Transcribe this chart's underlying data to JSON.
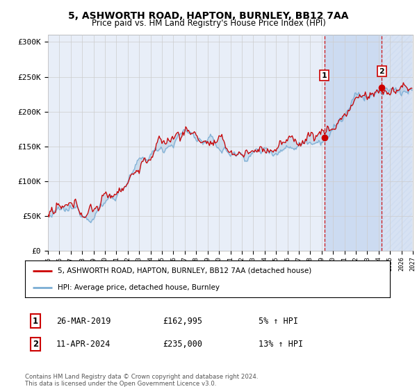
{
  "title": "5, ASHWORTH ROAD, HAPTON, BURNLEY, BB12 7AA",
  "subtitle": "Price paid vs. HM Land Registry's House Price Index (HPI)",
  "ylabel_ticks": [
    "£0",
    "£50K",
    "£100K",
    "£150K",
    "£200K",
    "£250K",
    "£300K"
  ],
  "ytick_values": [
    0,
    50000,
    100000,
    150000,
    200000,
    250000,
    300000
  ],
  "ylim": [
    0,
    310000
  ],
  "xlim_start": 1995,
  "xlim_end": 2027,
  "sale1_x": 2019.23,
  "sale1_y": 162995,
  "sale2_x": 2024.28,
  "sale2_y": 235000,
  "hpi_color": "#7aadd4",
  "price_color": "#cc0000",
  "vline_color": "#cc0000",
  "shade_color": "#c8d8f0",
  "grid_color": "#cccccc",
  "background_color": "#ffffff",
  "plot_bg_color": "#e8eef8",
  "legend_line1": "5, ASHWORTH ROAD, HAPTON, BURNLEY, BB12 7AA (detached house)",
  "legend_line2": "HPI: Average price, detached house, Burnley",
  "table_row1_num": "1",
  "table_row1_date": "26-MAR-2019",
  "table_row1_price": "£162,995",
  "table_row1_hpi": "5% ↑ HPI",
  "table_row2_num": "2",
  "table_row2_date": "11-APR-2024",
  "table_row2_price": "£235,000",
  "table_row2_hpi": "13% ↑ HPI",
  "footer": "Contains HM Land Registry data © Crown copyright and database right 2024.\nThis data is licensed under the Open Government Licence v3.0.",
  "title_fontsize": 10,
  "subtitle_fontsize": 8.5,
  "tick_fontsize": 8
}
